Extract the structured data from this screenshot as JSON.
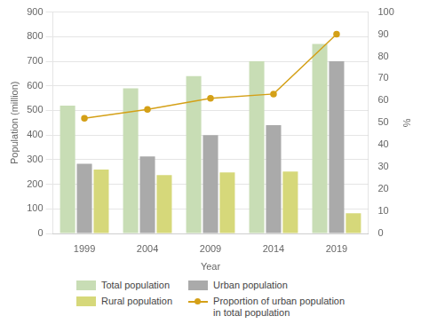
{
  "chart_data": {
    "type": "bar",
    "x_label": "Year",
    "y_label": "Population (million)",
    "y2_label": "%",
    "categories": [
      "1999",
      "2004",
      "2009",
      "2014",
      "2019"
    ],
    "series": [
      {
        "name": "Total population",
        "type": "bar",
        "color": "#c8ddb5",
        "values": [
          520,
          590,
          640,
          700,
          770
        ]
      },
      {
        "name": "Urban population",
        "type": "bar",
        "color": "#aaaaaa",
        "values": [
          283,
          313,
          400,
          440,
          700
        ]
      },
      {
        "name": "Rural population",
        "type": "bar",
        "color": "#d6d87a",
        "values": [
          260,
          237,
          248,
          252,
          82
        ]
      },
      {
        "name": "Proportion of urban population\nin total population",
        "type": "line",
        "axis": "y2",
        "color": "#d4a017",
        "marker": "circle",
        "line_style": "solid",
        "values": [
          52,
          56,
          61,
          63,
          90
        ]
      }
    ],
    "ylim": [
      0,
      900
    ],
    "yticks": [
      0,
      100,
      200,
      300,
      400,
      500,
      600,
      700,
      800,
      900
    ],
    "y2lim": [
      0,
      100
    ],
    "y2ticks": [
      0,
      10,
      20,
      30,
      40,
      50,
      60,
      70,
      80,
      90,
      100
    ],
    "grid": true,
    "legend": "bottom"
  }
}
